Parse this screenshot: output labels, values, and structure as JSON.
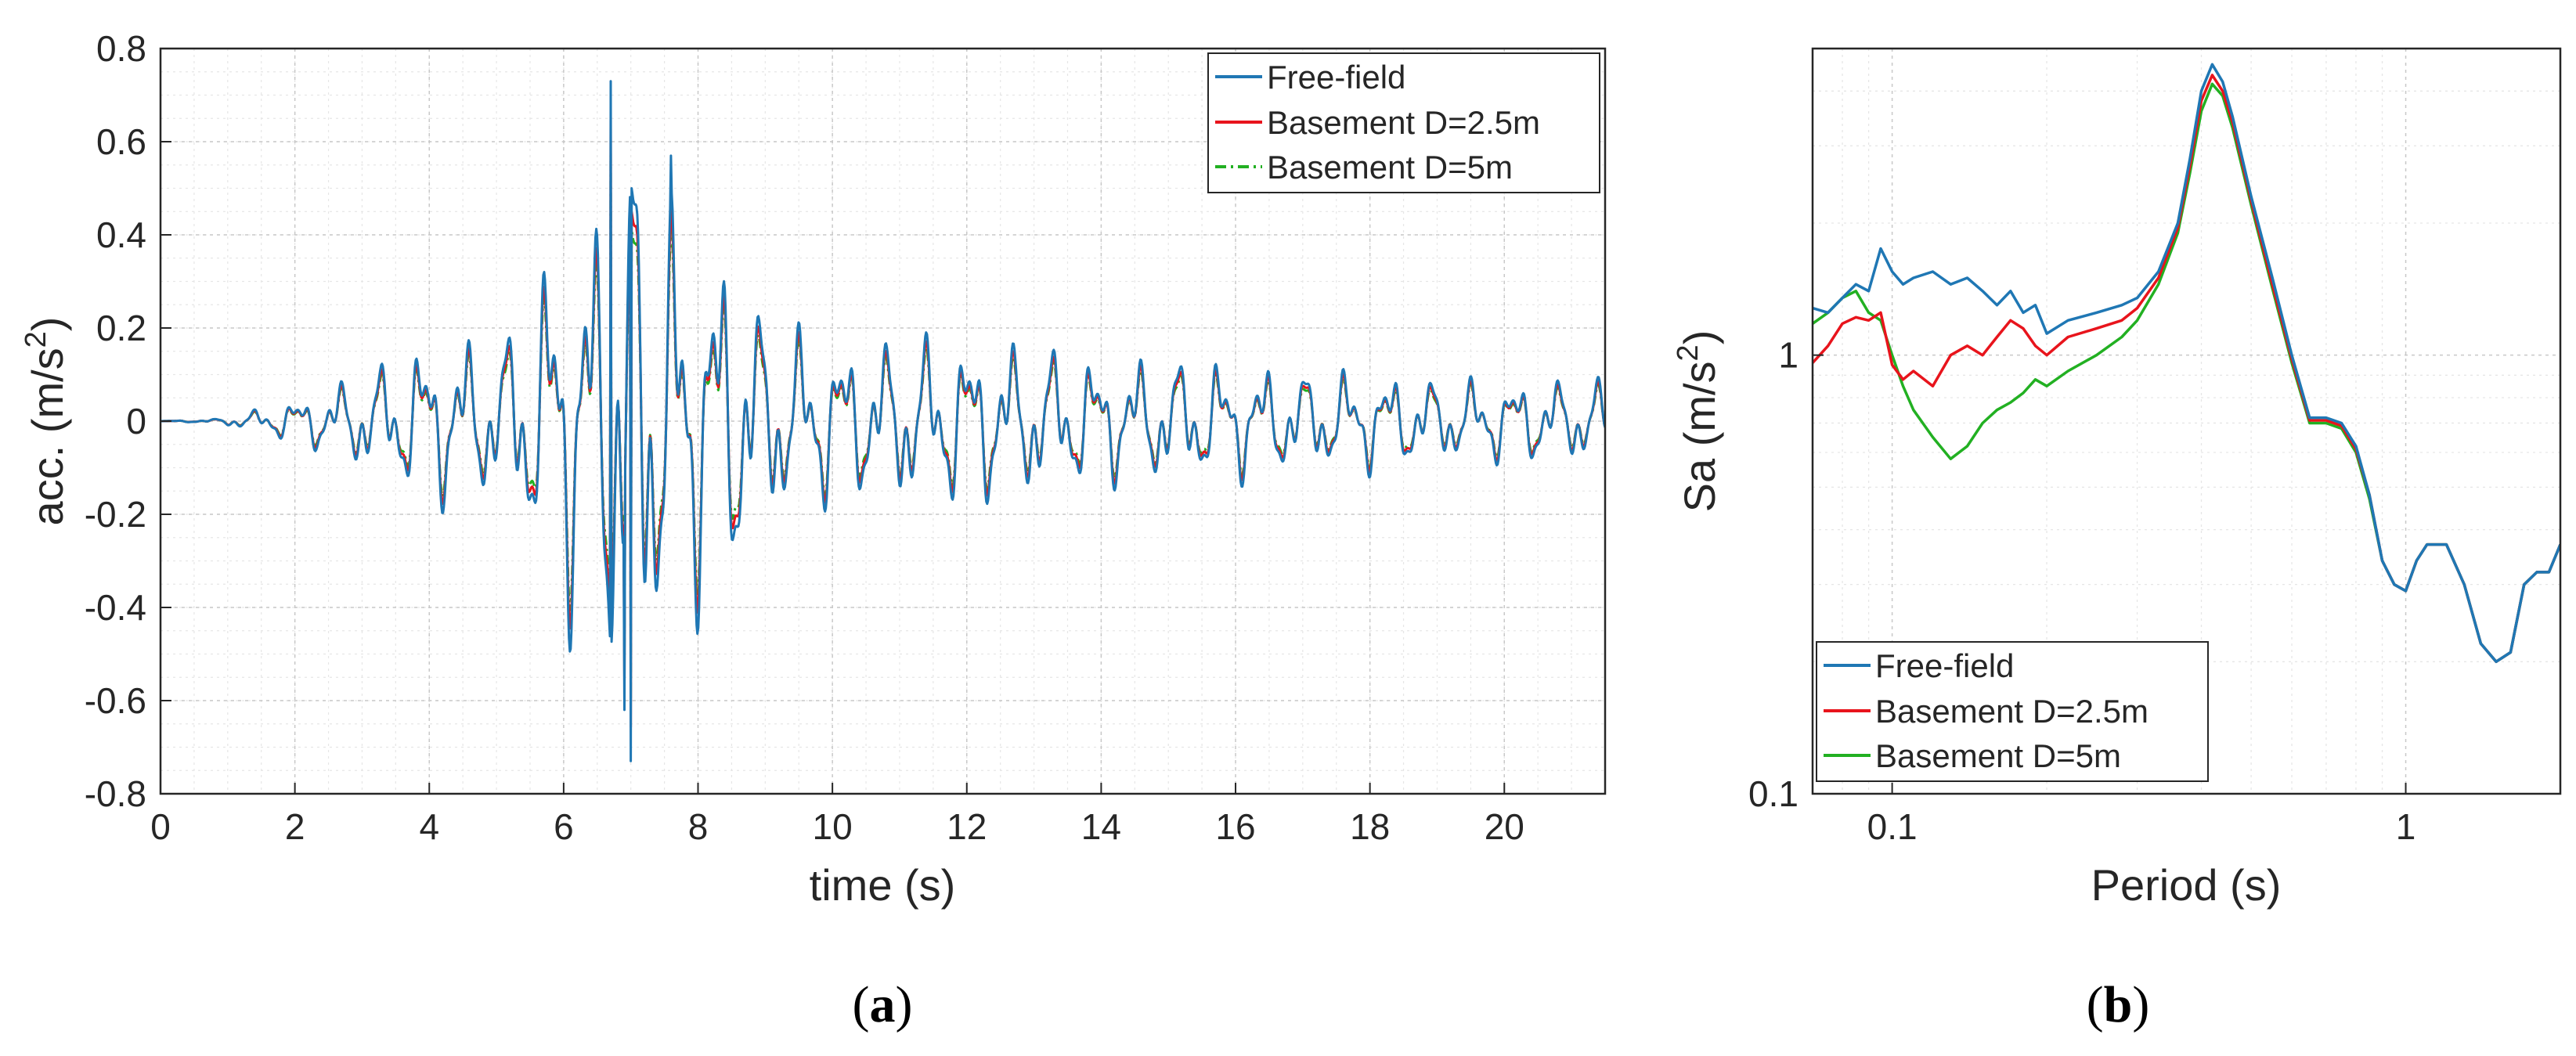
{
  "figure": {
    "panel_a_label": {
      "open": "(",
      "letter": "a",
      "close": ")"
    },
    "panel_b_label": {
      "open": "(",
      "letter": "b",
      "close": ")"
    }
  },
  "chart_data": [
    {
      "id": "a",
      "type": "line",
      "xlabel": "time (s)",
      "ylabel": "acc. (m/s²)",
      "ylabel_main": "acc. (m/s",
      "ylabel_sup": "2",
      "ylabel_close": ")",
      "xlim": [
        0,
        21.5
      ],
      "ylim": [
        -0.8,
        0.8
      ],
      "xticks": [
        0,
        2,
        4,
        6,
        8,
        10,
        12,
        14,
        16,
        18,
        20
      ],
      "xtick_labels": [
        "0",
        "2",
        "4",
        "6",
        "8",
        "10",
        "12",
        "14",
        "16",
        "18",
        "20"
      ],
      "yticks": [
        -0.8,
        -0.6,
        -0.4,
        -0.2,
        0,
        0.2,
        0.4,
        0.6,
        0.8
      ],
      "ytick_labels": [
        "-0.8",
        "-0.6",
        "-0.4",
        "-0.2",
        "0",
        "0.2",
        "0.4",
        "0.6",
        "0.8"
      ],
      "grid": true,
      "legend_position": "top-right",
      "series": [
        {
          "name": "Free-field",
          "color": "#1f77b4",
          "dash": "solid",
          "scale": 1.0
        },
        {
          "name": "Basement D=2.5m",
          "color": "#e8141c",
          "dash": "solid",
          "scale": 0.9
        },
        {
          "name": "Basement D=5m",
          "color": "#22b022",
          "dash": "dashdot",
          "scale": 0.82
        }
      ],
      "envelope": {
        "t": [
          0,
          0.8,
          1.5,
          2.5,
          3.0,
          3.5,
          4.0,
          4.5,
          5.0,
          5.5,
          6.0,
          6.5,
          6.7,
          7.0,
          7.5,
          8.0,
          8.5,
          9.0,
          9.5,
          10.0,
          10.5,
          11.0,
          12.0,
          13.0,
          14.0,
          15.0,
          16.0,
          17.0,
          18.0,
          19.0,
          20.0,
          21.5
        ],
        "amp": [
          0,
          0.005,
          0.03,
          0.08,
          0.12,
          0.15,
          0.2,
          0.2,
          0.18,
          0.3,
          0.48,
          0.5,
          0.7,
          0.72,
          0.55,
          0.45,
          0.4,
          0.25,
          0.22,
          0.2,
          0.18,
          0.2,
          0.2,
          0.18,
          0.15,
          0.15,
          0.14,
          0.12,
          0.12,
          0.1,
          0.1,
          0.1
        ]
      },
      "peak_points": [
        [
          6.7,
          0.73
        ],
        [
          7.0,
          -0.73
        ],
        [
          7.6,
          0.57
        ],
        [
          6.9,
          -0.62
        ]
      ]
    },
    {
      "id": "b",
      "type": "line",
      "scale": "log-log",
      "xlabel": "Period (s)",
      "ylabel": "Sa (m/s²)",
      "ylabel_main": "Sa (m/s",
      "ylabel_sup": "2",
      "ylabel_close": ")",
      "xlim": [
        0.07,
        2.0
      ],
      "ylim": [
        0.1,
        5.0
      ],
      "xticks": [
        0.1,
        1
      ],
      "xtick_labels": [
        "0.1",
        "1"
      ],
      "yticks": [
        0.1,
        1
      ],
      "ytick_labels": [
        "0.1",
        "1"
      ],
      "grid": true,
      "legend_position": "bottom-left",
      "series": [
        {
          "name": "Free-field",
          "color": "#1f77b4",
          "x": [
            0.07,
            0.075,
            0.08,
            0.085,
            0.09,
            0.095,
            0.1,
            0.105,
            0.11,
            0.12,
            0.13,
            0.14,
            0.15,
            0.16,
            0.17,
            0.18,
            0.19,
            0.2,
            0.22,
            0.25,
            0.28,
            0.3,
            0.33,
            0.36,
            0.38,
            0.4,
            0.42,
            0.44,
            0.46,
            0.5,
            0.55,
            0.6,
            0.65,
            0.7,
            0.75,
            0.8,
            0.85,
            0.9,
            0.95,
            1.0,
            1.05,
            1.1,
            1.2,
            1.3,
            1.4,
            1.5,
            1.6,
            1.7,
            1.8,
            1.9,
            2.0
          ],
          "y": [
            1.28,
            1.25,
            1.35,
            1.45,
            1.4,
            1.75,
            1.55,
            1.45,
            1.5,
            1.55,
            1.45,
            1.5,
            1.4,
            1.3,
            1.4,
            1.25,
            1.3,
            1.12,
            1.2,
            1.25,
            1.3,
            1.35,
            1.55,
            2.0,
            2.8,
            4.0,
            4.6,
            4.2,
            3.5,
            2.3,
            1.5,
            1.0,
            0.72,
            0.72,
            0.7,
            0.62,
            0.48,
            0.34,
            0.3,
            0.29,
            0.34,
            0.37,
            0.37,
            0.3,
            0.22,
            0.2,
            0.21,
            0.3,
            0.32,
            0.32,
            0.37
          ]
        },
        {
          "name": "Basement D=2.5m",
          "color": "#e8141c",
          "x": [
            0.07,
            0.075,
            0.08,
            0.085,
            0.09,
            0.095,
            0.1,
            0.105,
            0.11,
            0.12,
            0.13,
            0.14,
            0.15,
            0.16,
            0.17,
            0.18,
            0.19,
            0.2,
            0.22,
            0.25,
            0.28,
            0.3,
            0.33,
            0.36,
            0.38,
            0.4,
            0.42,
            0.44,
            0.46,
            0.5,
            0.55,
            0.6,
            0.65,
            0.7,
            0.75,
            0.8,
            0.85,
            0.9,
            0.95,
            1.0,
            1.05,
            1.1,
            1.2,
            1.3,
            1.4,
            1.5,
            1.6,
            1.7,
            1.8,
            1.9,
            2.0
          ],
          "y": [
            0.96,
            1.05,
            1.18,
            1.22,
            1.2,
            1.25,
            0.95,
            0.88,
            0.92,
            0.85,
            1.0,
            1.05,
            1.0,
            1.1,
            1.2,
            1.15,
            1.05,
            1.0,
            1.1,
            1.15,
            1.2,
            1.28,
            1.5,
            1.95,
            2.7,
            3.8,
            4.35,
            4.0,
            3.4,
            2.25,
            1.45,
            0.98,
            0.71,
            0.71,
            0.69,
            0.61,
            0.48,
            0.34,
            0.3,
            0.29,
            0.34,
            0.37,
            0.37,
            0.3,
            0.22,
            0.2,
            0.21,
            0.3,
            0.32,
            0.32,
            0.37
          ]
        },
        {
          "name": "Basement D=5m",
          "color": "#22b022",
          "x": [
            0.07,
            0.075,
            0.08,
            0.085,
            0.09,
            0.095,
            0.1,
            0.105,
            0.11,
            0.12,
            0.13,
            0.14,
            0.15,
            0.16,
            0.17,
            0.18,
            0.19,
            0.2,
            0.22,
            0.25,
            0.28,
            0.3,
            0.33,
            0.36,
            0.38,
            0.4,
            0.42,
            0.44,
            0.46,
            0.5,
            0.55,
            0.6,
            0.65,
            0.7,
            0.75,
            0.8,
            0.85,
            0.9,
            0.95,
            1.0,
            1.05,
            1.1,
            1.2,
            1.3,
            1.4,
            1.5,
            1.6,
            1.7,
            1.8,
            1.9,
            2.0
          ],
          "y": [
            1.18,
            1.25,
            1.35,
            1.4,
            1.25,
            1.2,
            1.0,
            0.85,
            0.75,
            0.65,
            0.58,
            0.62,
            0.7,
            0.75,
            0.78,
            0.82,
            0.88,
            0.85,
            0.92,
            1.0,
            1.1,
            1.2,
            1.45,
            1.9,
            2.6,
            3.6,
            4.15,
            3.9,
            3.3,
            2.2,
            1.42,
            0.96,
            0.7,
            0.7,
            0.68,
            0.6,
            0.47,
            0.34,
            0.3,
            0.29,
            0.34,
            0.37,
            0.37,
            0.3,
            0.22,
            0.2,
            0.21,
            0.3,
            0.32,
            0.32,
            0.37
          ]
        }
      ]
    }
  ]
}
